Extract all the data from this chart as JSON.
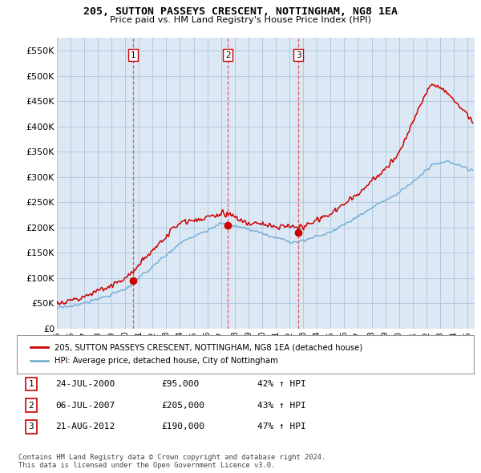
{
  "title": "205, SUTTON PASSEYS CRESCENT, NOTTINGHAM, NG8 1EA",
  "subtitle": "Price paid vs. HM Land Registry's House Price Index (HPI)",
  "legend_red": "205, SUTTON PASSEYS CRESCENT, NOTTINGHAM, NG8 1EA (detached house)",
  "legend_blue": "HPI: Average price, detached house, City of Nottingham",
  "footer": "Contains HM Land Registry data © Crown copyright and database right 2024.\nThis data is licensed under the Open Government Licence v3.0.",
  "table": [
    {
      "num": "1",
      "date": "24-JUL-2000",
      "price": "£95,000",
      "hpi": "42% ↑ HPI"
    },
    {
      "num": "2",
      "date": "06-JUL-2007",
      "price": "£205,000",
      "hpi": "43% ↑ HPI"
    },
    {
      "num": "3",
      "date": "21-AUG-2012",
      "price": "£190,000",
      "hpi": "47% ↑ HPI"
    }
  ],
  "sale_points": [
    {
      "year": 2000.56,
      "price": 95000,
      "label": "1"
    },
    {
      "year": 2007.51,
      "price": 205000,
      "label": "2"
    },
    {
      "year": 2012.64,
      "price": 190000,
      "label": "3"
    }
  ],
  "vlines": [
    2000.56,
    2007.51,
    2012.64
  ],
  "ylim": [
    0,
    575000
  ],
  "xlim": [
    1995.0,
    2025.5
  ],
  "yticks": [
    0,
    50000,
    100000,
    150000,
    200000,
    250000,
    300000,
    350000,
    400000,
    450000,
    500000,
    550000
  ],
  "ytick_labels": [
    "£0",
    "£50K",
    "£100K",
    "£150K",
    "£200K",
    "£250K",
    "£300K",
    "£350K",
    "£400K",
    "£450K",
    "£500K",
    "£550K"
  ],
  "xtick_years": [
    1995,
    1996,
    1997,
    1998,
    1999,
    2000,
    2001,
    2002,
    2003,
    2004,
    2005,
    2006,
    2007,
    2008,
    2009,
    2010,
    2011,
    2012,
    2013,
    2014,
    2015,
    2016,
    2017,
    2018,
    2019,
    2020,
    2021,
    2022,
    2023,
    2024,
    2025
  ],
  "background_color": "#ffffff",
  "chart_bg_color": "#dce9f5",
  "grid_color": "#b0c8e0",
  "red_color": "#cc0000",
  "blue_color": "#7aafd4",
  "vline_color": "#dd4444"
}
